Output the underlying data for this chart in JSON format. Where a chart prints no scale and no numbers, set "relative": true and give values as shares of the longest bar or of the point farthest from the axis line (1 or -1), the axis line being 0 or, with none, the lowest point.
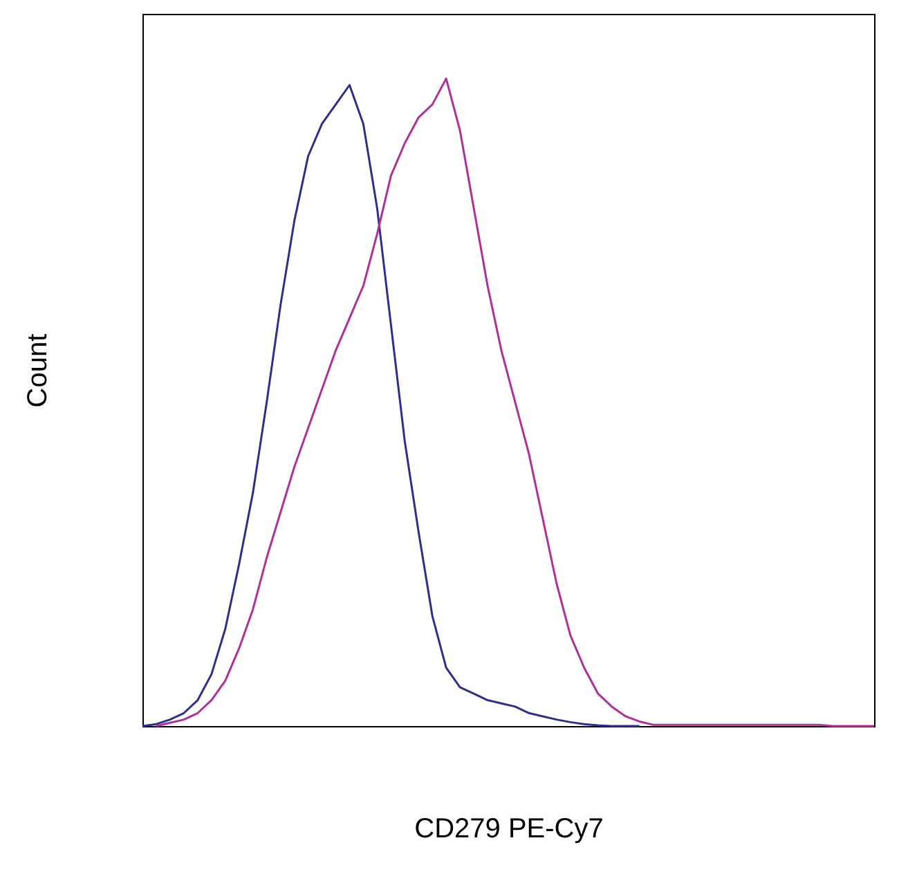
{
  "chart_data": {
    "type": "line",
    "xlabel": "CD279 PE-Cy7",
    "ylabel": "Count",
    "relative": true,
    "grid": false,
    "categories": [
      null,
      null,
      null,
      null,
      null,
      null,
      null,
      null,
      null,
      null,
      null,
      null,
      null,
      null,
      null,
      null,
      null,
      null,
      null,
      null,
      null,
      null,
      null,
      null,
      null,
      null,
      null,
      null,
      null,
      null,
      null,
      null,
      null,
      null,
      null,
      null,
      null,
      null,
      null,
      null,
      null,
      null,
      null,
      null,
      null,
      null,
      null,
      null,
      null,
      null,
      null,
      null,
      null,
      null
    ],
    "series": [
      {
        "color": "#2e2e8c",
        "values": [
          0,
          0.003,
          0.01,
          0.02,
          0.04,
          0.08,
          0.15,
          0.25,
          0.36,
          0.5,
          0.65,
          0.78,
          0.88,
          0.93,
          0.96,
          0.99,
          0.93,
          0.8,
          0.62,
          0.44,
          0.3,
          0.17,
          0.09,
          0.06,
          0.05,
          0.04,
          0.035,
          0.03,
          0.02,
          0.015,
          0.01,
          0.006,
          0.003,
          0.001,
          0,
          0,
          0,
          null,
          null,
          null,
          null,
          null,
          null,
          null,
          null,
          null,
          null,
          null,
          null,
          null,
          null,
          null,
          null,
          null
        ]
      },
      {
        "color": "#b0309a",
        "values": [
          null,
          0,
          0.005,
          0.01,
          0.02,
          0.04,
          0.07,
          0.12,
          0.18,
          0.26,
          0.33,
          0.4,
          0.46,
          0.52,
          0.58,
          0.63,
          0.68,
          0.76,
          0.85,
          0.9,
          0.94,
          0.96,
          1,
          0.92,
          0.8,
          0.68,
          0.58,
          0.5,
          0.42,
          0.32,
          0.22,
          0.14,
          0.09,
          0.05,
          0.03,
          0.015,
          0.007,
          0.002,
          0.002,
          0.002,
          0.002,
          0.002,
          0.002,
          0.002,
          0.002,
          0.002,
          0.002,
          0.002,
          0.002,
          0.002,
          0,
          0,
          0,
          0
        ]
      }
    ]
  }
}
